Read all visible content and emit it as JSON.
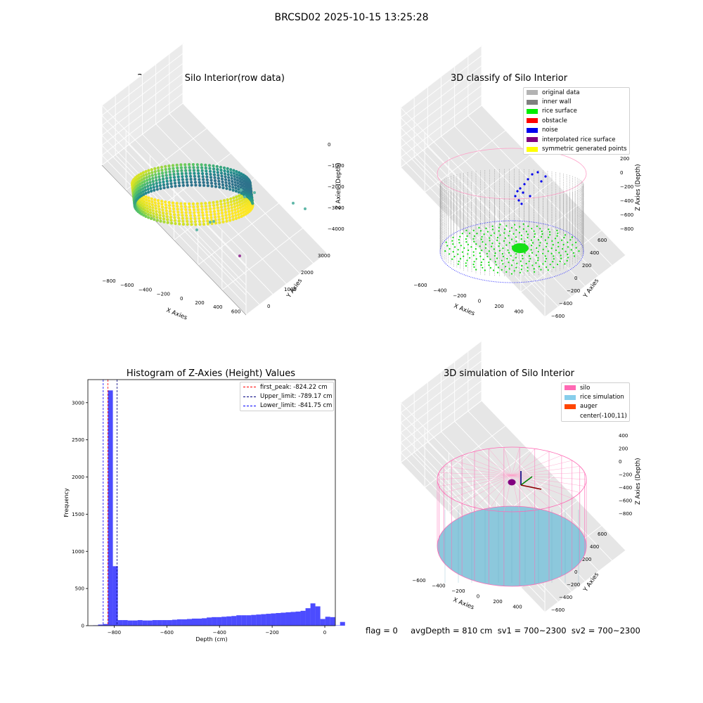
{
  "suptitle": "BRCSD02 2025-10-15 13:25:28",
  "footer": "flag = 0     avgDepth = 810 cm  sv1 = 700~2300  sv2 = 700~2300",
  "chart_data": [
    {
      "type": "scatter3d",
      "title": "3D Plot of Silo Interior(row data)",
      "xlabel": "X Axies",
      "ylabel": "Y Axies",
      "zlabel": "Z Axies (Depth)",
      "xticks": [
        "−800",
        "−600",
        "−400",
        "−200",
        "0",
        "200",
        "400",
        "600"
      ],
      "yticks": [
        "0",
        "1000",
        "2000",
        "3000"
      ],
      "zticks": [
        "0",
        "−1000",
        "−2000",
        "−3000",
        "−4000"
      ],
      "colormap": "viridis"
    },
    {
      "type": "scatter3d",
      "title": "3D classify of Silo Interior",
      "xlabel": "X Axies",
      "ylabel": "Y Axies",
      "zlabel": "Z Axies (Depth)",
      "xticks": [
        "−600",
        "−400",
        "−200",
        "0",
        "200",
        "400"
      ],
      "yticks": [
        "−600",
        "−400",
        "−200",
        "0",
        "200",
        "400",
        "600"
      ],
      "zticks": [
        "200",
        "0",
        "−200",
        "−400",
        "−600",
        "−800"
      ],
      "legend": [
        {
          "label": "original data",
          "color": "#b3b3b3"
        },
        {
          "label": "inner wall",
          "color": "#808080"
        },
        {
          "label": "rice surface",
          "color": "#00ee00"
        },
        {
          "label": "obstacle",
          "color": "#ff0000"
        },
        {
          "label": "noise",
          "color": "#0000ee"
        },
        {
          "label": "interpolated rice surface",
          "color": "#800080"
        },
        {
          "label": "symmetric generated points",
          "color": "#ffff00"
        }
      ],
      "legend_loc": "upper right"
    },
    {
      "type": "bar",
      "title": "Histogram of Z-Axies (Height) Values",
      "xlabel": "Depth (cm)",
      "ylabel": "Frequency",
      "xlim": [
        -900,
        40
      ],
      "ylim": [
        0,
        3310
      ],
      "xticks": [
        -800,
        -600,
        -400,
        -200,
        0
      ],
      "yticks": [
        0,
        500,
        1000,
        1500,
        2000,
        2500,
        3000
      ],
      "tick_labels_x": [
        "−800",
        "−600",
        "−400",
        "−200",
        "0"
      ],
      "tick_labels_y": [
        "0",
        "500",
        "1000",
        "1500",
        "2000",
        "2500",
        "3000"
      ],
      "bin_width": 18.76,
      "bin_start": -880,
      "values": [
        5,
        15,
        22,
        3165,
        800,
        75,
        75,
        70,
        70,
        75,
        70,
        70,
        75,
        75,
        75,
        75,
        80,
        85,
        85,
        90,
        95,
        95,
        100,
        110,
        115,
        115,
        120,
        125,
        130,
        140,
        140,
        140,
        145,
        150,
        155,
        160,
        165,
        170,
        175,
        180,
        185,
        190,
        200,
        235,
        300,
        260,
        90,
        120,
        115,
        5,
        50
      ],
      "color": "#0000ff",
      "vlines": [
        {
          "label": "first_peak: -824.22 cm",
          "x": -824.22,
          "color": "#ff0000"
        },
        {
          "label": "Upper_limit: -789.17 cm",
          "x": -789.17,
          "color": "#000080"
        },
        {
          "label": "Lower_limit: -841.75 cm",
          "x": -841.75,
          "color": "#0000ff"
        }
      ]
    },
    {
      "type": "surface3d",
      "title": "3D simulation of Silo Interior",
      "xlabel": "X Axies",
      "ylabel": "Y Axies",
      "zlabel": "Z Axies (Depth)",
      "xticks": [
        "−600",
        "−400",
        "−200",
        "0",
        "200",
        "400"
      ],
      "yticks": [
        "−600",
        "−400",
        "−200",
        "0",
        "200",
        "400",
        "600"
      ],
      "zticks": [
        "400",
        "200",
        "0",
        "−200",
        "−400",
        "−600",
        "−800"
      ],
      "legend": [
        {
          "label": "silo",
          "color": "#ff69b4"
        },
        {
          "label": "rice simulation",
          "color": "#87ceeb"
        },
        {
          "label": "auger",
          "color": "#ff4500"
        },
        {
          "label": "center(-100,11)",
          "color": ""
        }
      ],
      "legend_loc": "upper right"
    }
  ]
}
